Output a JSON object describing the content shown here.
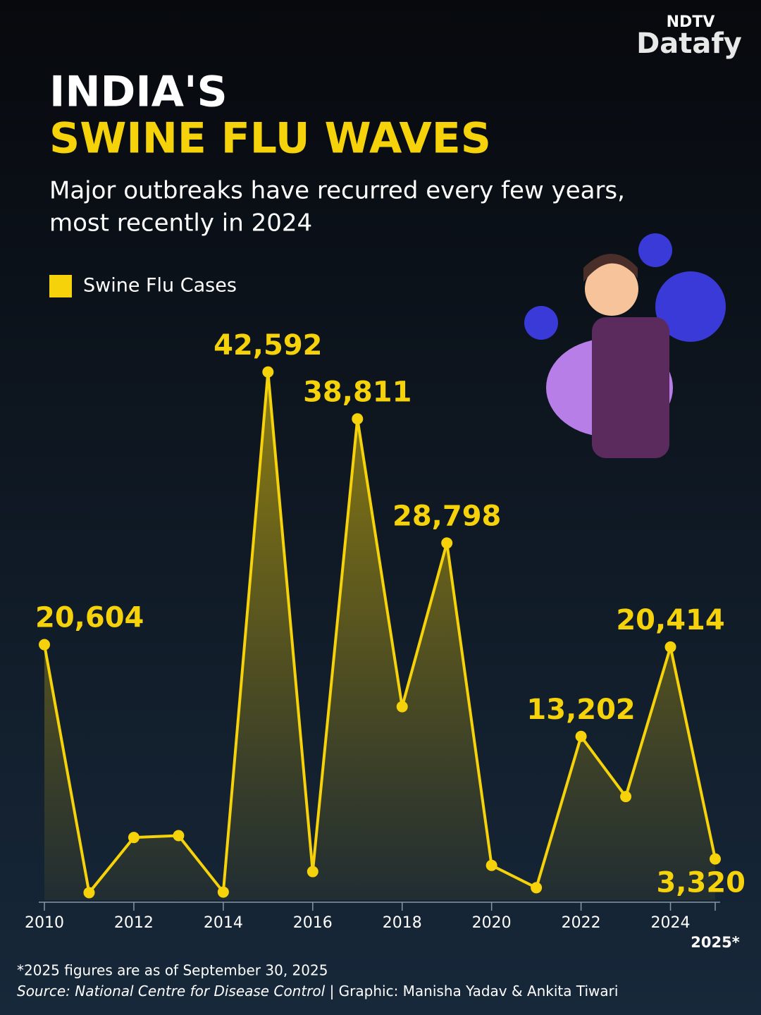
{
  "brand": {
    "top": "NDTV",
    "name": "Datafy"
  },
  "chart_data": {
    "type": "line",
    "title": "INDIA'S",
    "title_highlight": "SWINE FLU WAVES",
    "subtitle": [
      "Major outbreaks have recurred every few years,",
      "most recently in 2024"
    ],
    "x": [
      2010,
      2011,
      2012,
      2013,
      2014,
      2015,
      2016,
      2017,
      2018,
      2019,
      2020,
      2021,
      2022,
      2023,
      2024,
      2025
    ],
    "xlim": [
      2010,
      2025
    ],
    "xticks": [
      2010,
      2012,
      2014,
      2016,
      2018,
      2020,
      2022,
      2024,
      {
        "value": 2025,
        "label": "2025*"
      }
    ],
    "ylim": [
      0,
      44000
    ],
    "series": [
      {
        "name": "Swine Flu Cases",
        "color": "#f5d20a",
        "values": [
          20604,
          600,
          5050,
          5200,
          650,
          42592,
          2300,
          38811,
          15600,
          28798,
          2800,
          1000,
          13202,
          8350,
          20414,
          3320
        ],
        "value_labels": [
          "20,604",
          null,
          null,
          null,
          null,
          "42,592",
          null,
          "38,811",
          null,
          "28,798",
          null,
          null,
          "13,202",
          null,
          "20,414",
          "3,320"
        ]
      }
    ],
    "footnote": "*2025 figures are as of September 30, 2025",
    "source": "Source: National Centre for Disease Control",
    "credit": " | Graphic: Manisha Yadav & Ankita Tiwari"
  }
}
